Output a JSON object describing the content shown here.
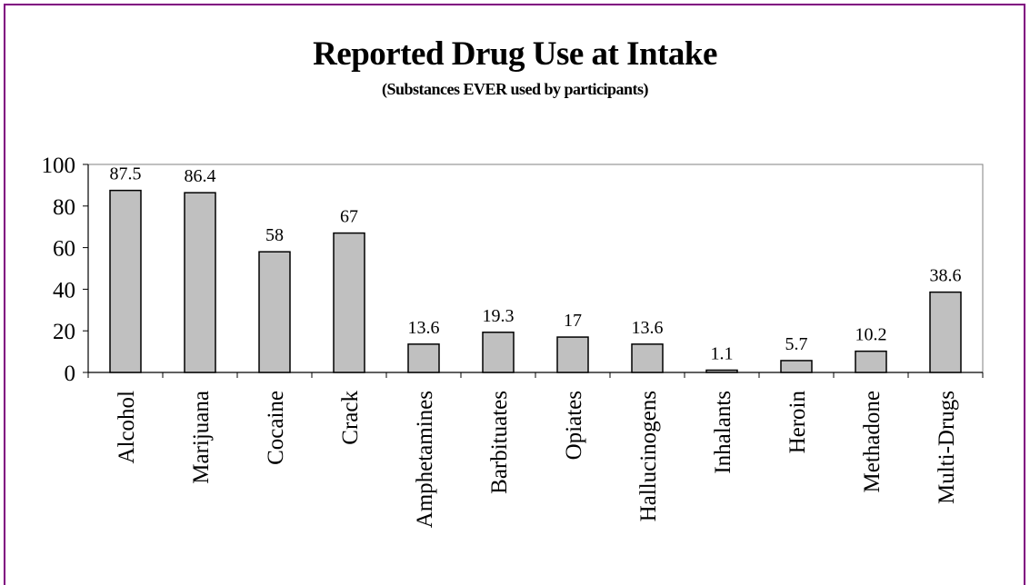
{
  "chart_data": {
    "type": "bar",
    "title": "Reported Drug Use at Intake",
    "subtitle": "(Substances EVER used by participants)",
    "xlabel": "",
    "ylabel": "",
    "categories": [
      "Alcohol",
      "Marijuana",
      "Cocaine",
      "Crack",
      "Amphetamines",
      "Barbituates",
      "Opiates",
      "Hallucinogens",
      "Inhalants",
      "Heroin",
      "Methadone",
      "Multi-Drugs"
    ],
    "values": [
      87.5,
      86.4,
      58,
      67,
      13.6,
      19.3,
      17,
      13.6,
      1.1,
      5.7,
      10.2,
      38.6
    ],
    "data_labels": [
      "87.5",
      "86.4",
      "58",
      "67",
      "13.6",
      "19.3",
      "17",
      "13.6",
      "1.1",
      "5.7",
      "10.2",
      "38.6"
    ],
    "ylim": [
      0,
      100
    ],
    "yticks": [
      0,
      20,
      40,
      60,
      80,
      100
    ],
    "ytick_labels": [
      "0",
      "20",
      "40",
      "60",
      "80",
      "100"
    ],
    "grid": false,
    "legend": "none",
    "colors": {
      "bar_fill": "#c0c0c0",
      "bar_stroke": "#000000",
      "frame_border": "#800080",
      "plot_border": "#808080"
    }
  }
}
